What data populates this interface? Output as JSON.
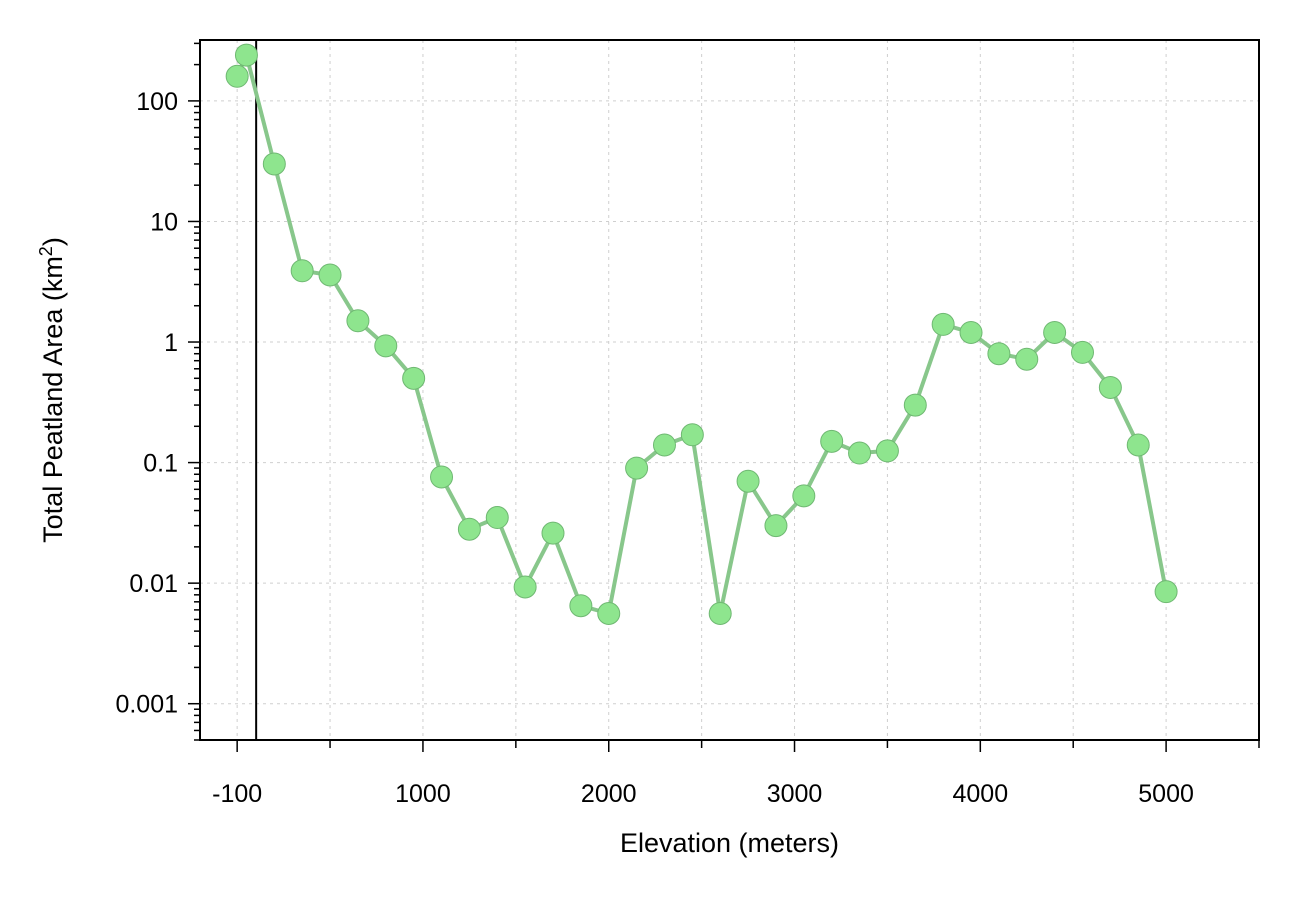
{
  "chart_data": {
    "type": "line",
    "xlabel": "Elevation (meters)",
    "ylabel": "Total Peatland Area (km",
    "ylabel_superscript": "2",
    "ylabel_close": ")",
    "x_scale": "linear",
    "y_scale": "log",
    "xlim": [
      -200,
      5500
    ],
    "ylim": [
      0.0005,
      320
    ],
    "x_ticks": [
      {
        "value": -100,
        "label": "-100"
      },
      {
        "value": 1000,
        "label": "1000"
      },
      {
        "value": 2000,
        "label": "2000"
      },
      {
        "value": 3000,
        "label": "3000"
      },
      {
        "value": 4000,
        "label": "4000"
      },
      {
        "value": 5000,
        "label": "5000"
      }
    ],
    "y_ticks": [
      {
        "value": 0.001,
        "label": "0.001"
      },
      {
        "value": 0.01,
        "label": "0.01"
      },
      {
        "value": 0.1,
        "label": "0.1"
      },
      {
        "value": 1,
        "label": "1"
      },
      {
        "value": 10,
        "label": "10"
      },
      {
        "value": 100,
        "label": "100"
      }
    ],
    "grid": true,
    "reference_vertical_line_x": 0,
    "series": [
      {
        "color": "#88c78b",
        "marker_color": "#8ee58e",
        "marker_edge": "#6fb872",
        "x": [
          -100,
          50,
          200,
          350,
          500,
          650,
          800,
          950,
          1100,
          1250,
          1400,
          1550,
          1700,
          1850,
          2000,
          2150,
          2300,
          2450,
          2600,
          2750,
          2900,
          3050,
          3200,
          3350,
          3500,
          3650,
          3800,
          3950,
          4100,
          4250,
          4400,
          4550,
          4700,
          4850,
          5000
        ],
        "y": [
          160,
          240,
          30,
          3.9,
          3.6,
          1.5,
          0.93,
          0.5,
          0.076,
          0.028,
          0.035,
          0.0093,
          0.026,
          0.0065,
          0.0056,
          0.09,
          0.14,
          0.17,
          0.0056,
          0.07,
          0.03,
          0.053,
          0.15,
          0.12,
          0.125,
          0.3,
          1.4,
          1.2,
          0.8,
          0.72,
          1.2,
          0.82,
          0.42,
          0.14,
          0.0085
        ]
      }
    ]
  }
}
